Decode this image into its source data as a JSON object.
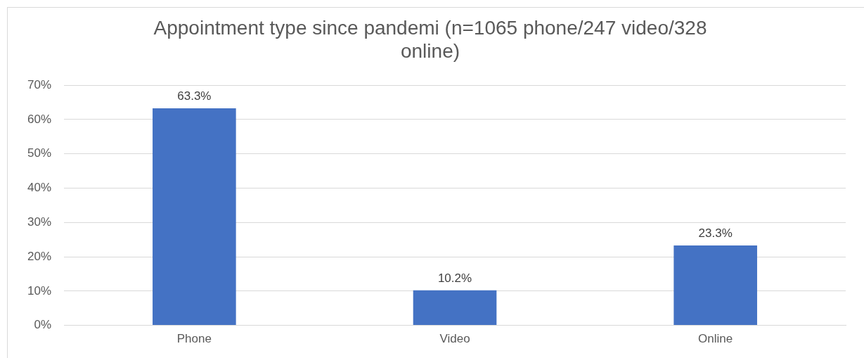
{
  "chart_data": {
    "type": "bar",
    "title": "Appointment type since pandemi (n=1065 phone/247 video/328 online)",
    "categories": [
      "Phone",
      "Video",
      "Online"
    ],
    "values": [
      63.3,
      10.2,
      23.3
    ],
    "value_labels": [
      "63.3%",
      "10.2%",
      "23.3%"
    ],
    "color": "#4472c4",
    "ylim": [
      0,
      70
    ],
    "yticks": [
      {
        "value": 0,
        "label": "0%"
      },
      {
        "value": 10,
        "label": "10%"
      },
      {
        "value": 20,
        "label": "20%"
      },
      {
        "value": 30,
        "label": "30%"
      },
      {
        "value": 40,
        "label": "40%"
      },
      {
        "value": 50,
        "label": "50%"
      },
      {
        "value": 60,
        "label": "60%"
      },
      {
        "value": 70,
        "label": "70%"
      }
    ],
    "grid": "y",
    "legend": false
  }
}
